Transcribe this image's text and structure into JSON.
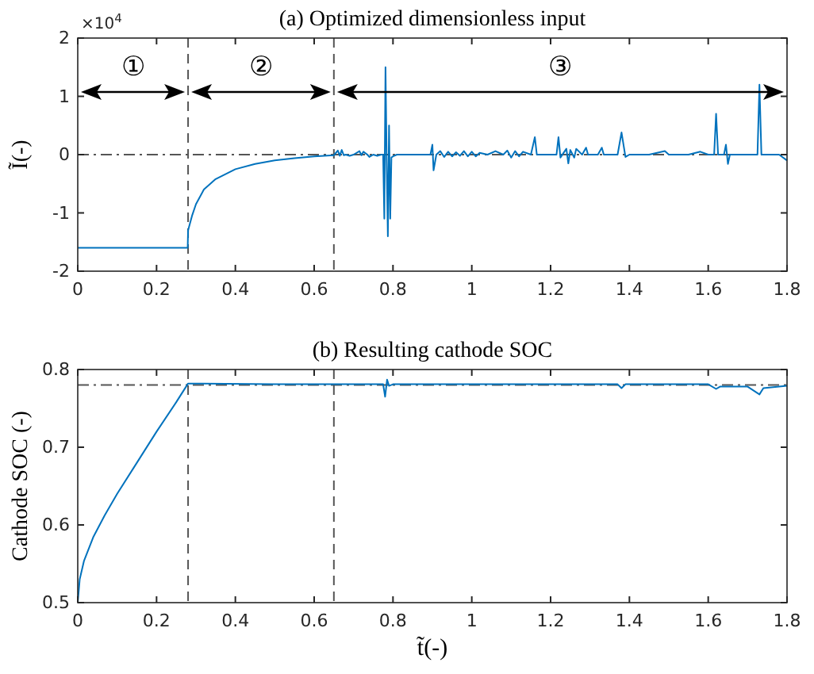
{
  "chart_data": [
    {
      "type": "line",
      "title": "(a) Optimized dimensionless input",
      "ylabel": "Ĩ(-)",
      "annotations": [
        "×10$^{4}$",
        "①",
        "②",
        "③"
      ],
      "series": [
        {
          "color": "#0072bd",
          "x": [
            0,
            0.1,
            0.2,
            0.279,
            0.28,
            0.29,
            0.3,
            0.32,
            0.35,
            0.4,
            0.45,
            0.5,
            0.55,
            0.6,
            0.65,
            0.66,
            0.665,
            0.67,
            0.675,
            0.68,
            0.69,
            0.7,
            0.715,
            0.72,
            0.725,
            0.735,
            0.74,
            0.75,
            0.76,
            0.77,
            0.775,
            0.778,
            0.781,
            0.784,
            0.787,
            0.79,
            0.793,
            0.796,
            0.8,
            0.81,
            0.85,
            0.895,
            0.9,
            0.903,
            0.91,
            0.92,
            0.93,
            0.94,
            0.95,
            0.96,
            0.97,
            0.98,
            0.99,
            1.0,
            1.01,
            1.02,
            1.04,
            1.06,
            1.08,
            1.09,
            1.1,
            1.11,
            1.12,
            1.13,
            1.15,
            1.16,
            1.165,
            1.18,
            1.215,
            1.22,
            1.225,
            1.24,
            1.245,
            1.25,
            1.26,
            1.265,
            1.28,
            1.29,
            1.295,
            1.32,
            1.33,
            1.335,
            1.37,
            1.38,
            1.39,
            1.4,
            1.45,
            1.49,
            1.5,
            1.55,
            1.58,
            1.6,
            1.615,
            1.62,
            1.625,
            1.64,
            1.645,
            1.65,
            1.655,
            1.7,
            1.725,
            1.73,
            1.735,
            1.76,
            1.78,
            1.8
          ],
          "values": [
            -1.6,
            -1.6,
            -1.6,
            -1.6,
            -1.3,
            -1.05,
            -0.85,
            -0.6,
            -0.42,
            -0.25,
            -0.16,
            -0.1,
            -0.06,
            -0.03,
            -0.01,
            0.07,
            -0.02,
            0.08,
            -0.01,
            0,
            -0.02,
            0,
            0.06,
            -0.01,
            0.05,
            0,
            -0.04,
            0,
            -0.02,
            0,
            0,
            -1.1,
            1.5,
            -0.1,
            -1.4,
            0.5,
            -1.1,
            -0.05,
            -0.03,
            0,
            0,
            0,
            0.17,
            -0.27,
            0,
            0.06,
            -0.04,
            0.05,
            -0.03,
            0.04,
            -0.02,
            0.06,
            -0.03,
            0.05,
            -0.03,
            0.03,
            0,
            0.06,
            0,
            0.07,
            -0.05,
            0.06,
            -0.03,
            0.05,
            0,
            0.3,
            0,
            0,
            0,
            0.3,
            -0.05,
            0.1,
            -0.15,
            0.08,
            -0.05,
            0.1,
            0,
            0.12,
            0,
            0,
            0.12,
            0,
            0,
            0.38,
            -0.04,
            0,
            0,
            0.06,
            0,
            0,
            0.05,
            0,
            0,
            0.7,
            0,
            0,
            0.17,
            -0.16,
            0,
            0,
            0,
            1.2,
            0,
            0,
            0,
            -0.1
          ]
        }
      ],
      "xlim": [
        0,
        1.8
      ],
      "xticks": [
        0,
        0.2,
        0.4,
        0.6,
        0.8,
        1,
        1.2,
        1.4,
        1.6,
        1.8
      ],
      "ylim": [
        -2,
        2
      ],
      "yticks": [
        -2,
        -1,
        0,
        1,
        2
      ],
      "ref_lines": [
        {
          "axis": "x",
          "value": 0.28,
          "line_style": "dashed",
          "color": "#555555"
        },
        {
          "axis": "x",
          "value": 0.65,
          "line_style": "dashed",
          "color": "#555555"
        },
        {
          "axis": "y",
          "value": 0,
          "line_style": "dashdot",
          "color": "#555555"
        }
      ],
      "grid": false,
      "line_style": "solid"
    },
    {
      "type": "line",
      "title": "(b) Resulting cathode SOC",
      "xlabel": "t̃(-)",
      "ylabel": "Cathode SOC (-)",
      "series": [
        {
          "color": "#0072bd",
          "x": [
            0,
            0.005,
            0.016,
            0.04,
            0.068,
            0.1,
            0.15,
            0.2,
            0.25,
            0.28,
            0.3,
            0.5,
            0.65,
            0.7,
            0.775,
            0.78,
            0.785,
            0.79,
            0.8,
            1.0,
            1.37,
            1.38,
            1.39,
            1.6,
            1.62,
            1.63,
            1.7,
            1.73,
            1.74,
            1.76,
            1.8
          ],
          "values": [
            0.5,
            0.53,
            0.554,
            0.585,
            0.612,
            0.64,
            0.68,
            0.72,
            0.758,
            0.782,
            0.782,
            0.781,
            0.781,
            0.781,
            0.781,
            0.765,
            0.787,
            0.779,
            0.781,
            0.781,
            0.781,
            0.776,
            0.781,
            0.781,
            0.775,
            0.778,
            0.778,
            0.768,
            0.776,
            0.777,
            0.779
          ]
        }
      ],
      "xlim": [
        0,
        1.8
      ],
      "xticks": [
        0,
        0.2,
        0.4,
        0.6,
        0.8,
        1,
        1.2,
        1.4,
        1.6,
        1.8
      ],
      "ylim": [
        0.5,
        0.8
      ],
      "yticks": [
        0.5,
        0.6,
        0.7,
        0.8
      ],
      "ref_lines": [
        {
          "axis": "x",
          "value": 0.28,
          "line_style": "dashed",
          "color": "#555555"
        },
        {
          "axis": "x",
          "value": 0.65,
          "line_style": "dashed",
          "color": "#555555"
        },
        {
          "axis": "y",
          "value": 0.78,
          "line_style": "dashdot",
          "color": "#555555"
        }
      ],
      "grid": false,
      "line_style": "solid"
    }
  ]
}
